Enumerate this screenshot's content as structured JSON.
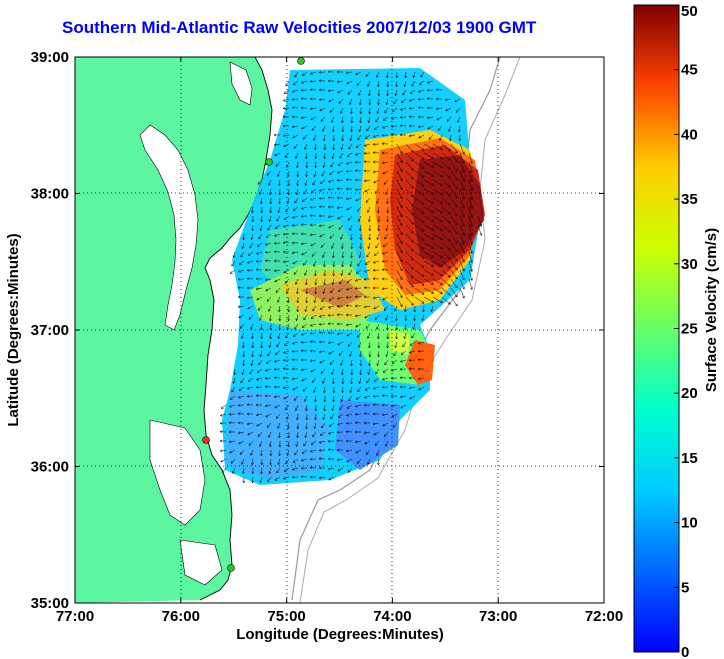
{
  "title": "Southern Mid-Atlantic Raw Velocities 2007/12/03 1900 GMT",
  "axes": {
    "xlabel": "Longitude (Degrees:Minutes)",
    "ylabel": "Latitude (Degrees:Minutes)",
    "x_ticks": [
      "77:00",
      "76:00",
      "75:00",
      "74:00",
      "73:00",
      "72:00"
    ],
    "y_ticks": [
      "39:00",
      "38:00",
      "37:00",
      "36:00",
      "35:00"
    ],
    "xlim": [
      -77,
      -72
    ],
    "ylim": [
      35,
      39
    ],
    "grid": "dotted"
  },
  "colorbar": {
    "label": "Surface Velocity (cm/s)",
    "ticks": [
      "50",
      "45",
      "40",
      "35",
      "30",
      "25",
      "20",
      "15",
      "10",
      "5",
      "0"
    ],
    "range": [
      0,
      50
    ],
    "colormap": "jet"
  },
  "colors": {
    "land": "#5cf5a0",
    "ocean": "#ffffff",
    "title": "#0000ff",
    "station": "#22cc22",
    "station_alt": "#ff2222"
  }
}
